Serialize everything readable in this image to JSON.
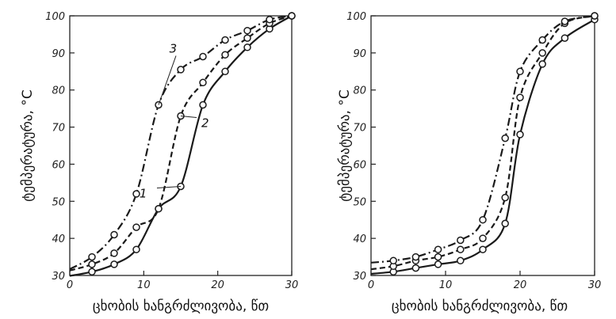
{
  "chart_data": [
    {
      "type": "line",
      "xlabel": "ცხობის ხანგრძლივობა, წთ",
      "ylabel": "ტემპერატურა, °C",
      "xlim": [
        0,
        30
      ],
      "ylim": [
        30,
        100
      ],
      "xticks": [
        "0",
        "10",
        "20",
        "30"
      ],
      "yticks": [
        "30",
        "40",
        "50",
        "60",
        "70",
        "80",
        "90",
        "100"
      ],
      "grid": false,
      "series": [
        {
          "name": "1",
          "style": "solid",
          "color": "#1a1a1a",
          "x": [
            3,
            6,
            9,
            12,
            15,
            18,
            21,
            24,
            27,
            30
          ],
          "y": [
            31,
            33,
            37,
            48,
            54,
            76,
            85,
            91.5,
            96.5,
            100
          ]
        },
        {
          "name": "2",
          "style": "dashed",
          "color": "#1a1a1a",
          "x": [
            3,
            6,
            9,
            12,
            15,
            18,
            21,
            24,
            27,
            30
          ],
          "y": [
            33,
            36,
            43,
            48,
            73,
            82,
            89.5,
            94,
            98,
            100
          ]
        },
        {
          "name": "3",
          "style": "dashdot",
          "color": "#1a1a1a",
          "x": [
            3,
            6,
            9,
            12,
            15,
            18,
            21,
            24,
            27,
            30
          ],
          "y": [
            35,
            41,
            52,
            76,
            85.5,
            89,
            93.5,
            96,
            99,
            100
          ]
        }
      ],
      "annotations": [
        "1",
        "2",
        "3"
      ]
    },
    {
      "type": "line",
      "xlabel": "ცხობის ხანგრძლივობა, წთ",
      "ylabel": "ტემპერატურა, °C",
      "xlim": [
        0,
        30
      ],
      "ylim": [
        30,
        100
      ],
      "xticks": [
        "0",
        "10",
        "20",
        "30"
      ],
      "yticks": [
        "30",
        "40",
        "50",
        "60",
        "70",
        "80",
        "90",
        "100"
      ],
      "grid": false,
      "series": [
        {
          "name": "",
          "style": "solid",
          "color": "#1a1a1a",
          "x": [
            3,
            6,
            9,
            12,
            15,
            18,
            20,
            23,
            26,
            30
          ],
          "y": [
            31,
            32,
            33,
            34,
            37,
            44,
            68,
            87,
            94,
            99
          ]
        },
        {
          "name": "",
          "style": "dashed",
          "color": "#1a1a1a",
          "x": [
            3,
            6,
            9,
            12,
            15,
            18,
            20,
            23,
            26,
            30
          ],
          "y": [
            32.5,
            34,
            35,
            37,
            40,
            51,
            78,
            90,
            98,
            100
          ]
        },
        {
          "name": "",
          "style": "dashdot",
          "color": "#1a1a1a",
          "x": [
            3,
            6,
            9,
            12,
            15,
            18,
            20,
            23,
            26,
            30
          ],
          "y": [
            34,
            35,
            37,
            39.5,
            45,
            67,
            85,
            93.5,
            98.5,
            100
          ]
        }
      ]
    }
  ]
}
